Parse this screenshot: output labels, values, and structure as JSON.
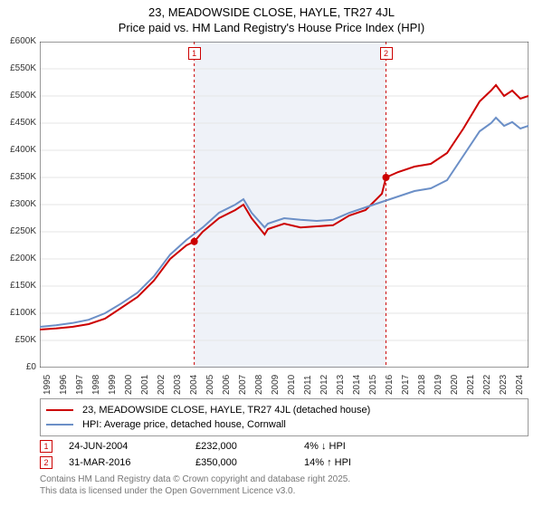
{
  "title": {
    "line1": "23, MEADOWSIDE CLOSE, HAYLE, TR27 4JL",
    "line2": "Price paid vs. HM Land Registry's House Price Index (HPI)"
  },
  "chart": {
    "type": "line",
    "background_color": "#ffffff",
    "grid_color": "#e6e6e6",
    "axis_color": "#333333",
    "shade_color": "#e8edf5",
    "shade_opacity": 0.7,
    "x": {
      "min": 1995,
      "max": 2025,
      "ticks": [
        1995,
        1996,
        1997,
        1998,
        1999,
        2000,
        2001,
        2002,
        2003,
        2004,
        2005,
        2006,
        2007,
        2008,
        2009,
        2010,
        2011,
        2012,
        2013,
        2014,
        2015,
        2016,
        2017,
        2018,
        2019,
        2020,
        2021,
        2022,
        2023,
        2024
      ],
      "label_fontsize": 10
    },
    "y": {
      "min": 0,
      "max": 600000,
      "ticks": [
        0,
        50000,
        100000,
        150000,
        200000,
        250000,
        300000,
        350000,
        400000,
        450000,
        500000,
        550000,
        600000
      ],
      "tick_labels": [
        "£0",
        "£50K",
        "£100K",
        "£150K",
        "£200K",
        "£250K",
        "£300K",
        "£350K",
        "£400K",
        "£450K",
        "£500K",
        "£550K",
        "£600K"
      ],
      "label_fontsize": 10
    },
    "shade_range": {
      "x0": 2004.48,
      "x1": 2016.25
    },
    "series": [
      {
        "id": "property",
        "label": "23, MEADOWSIDE CLOSE, HAYLE, TR27 4JL (detached house)",
        "color": "#cc0000",
        "width": 2,
        "points": [
          [
            1995,
            70000
          ],
          [
            1996,
            72000
          ],
          [
            1997,
            75000
          ],
          [
            1998,
            80000
          ],
          [
            1999,
            90000
          ],
          [
            2000,
            110000
          ],
          [
            2001,
            130000
          ],
          [
            2002,
            160000
          ],
          [
            2003,
            200000
          ],
          [
            2004,
            225000
          ],
          [
            2004.48,
            232000
          ],
          [
            2005,
            250000
          ],
          [
            2006,
            275000
          ],
          [
            2007,
            290000
          ],
          [
            2007.5,
            300000
          ],
          [
            2008,
            275000
          ],
          [
            2008.8,
            245000
          ],
          [
            2009,
            255000
          ],
          [
            2010,
            265000
          ],
          [
            2011,
            258000
          ],
          [
            2012,
            260000
          ],
          [
            2013,
            262000
          ],
          [
            2014,
            280000
          ],
          [
            2015,
            290000
          ],
          [
            2016,
            320000
          ],
          [
            2016.25,
            350000
          ],
          [
            2017,
            360000
          ],
          [
            2018,
            370000
          ],
          [
            2019,
            375000
          ],
          [
            2020,
            395000
          ],
          [
            2021,
            440000
          ],
          [
            2022,
            490000
          ],
          [
            2022.7,
            510000
          ],
          [
            2023,
            520000
          ],
          [
            2023.5,
            500000
          ],
          [
            2024,
            510000
          ],
          [
            2024.5,
            495000
          ],
          [
            2025,
            500000
          ]
        ]
      },
      {
        "id": "hpi",
        "label": "HPI: Average price, detached house, Cornwall",
        "color": "#6b8fc7",
        "width": 2,
        "points": [
          [
            1995,
            75000
          ],
          [
            1996,
            78000
          ],
          [
            1997,
            82000
          ],
          [
            1998,
            88000
          ],
          [
            1999,
            100000
          ],
          [
            2000,
            118000
          ],
          [
            2001,
            138000
          ],
          [
            2002,
            168000
          ],
          [
            2003,
            208000
          ],
          [
            2004,
            235000
          ],
          [
            2005,
            258000
          ],
          [
            2006,
            285000
          ],
          [
            2007,
            300000
          ],
          [
            2007.5,
            310000
          ],
          [
            2008,
            285000
          ],
          [
            2008.8,
            258000
          ],
          [
            2009,
            265000
          ],
          [
            2010,
            275000
          ],
          [
            2011,
            272000
          ],
          [
            2012,
            270000
          ],
          [
            2013,
            272000
          ],
          [
            2014,
            285000
          ],
          [
            2015,
            295000
          ],
          [
            2016,
            305000
          ],
          [
            2017,
            315000
          ],
          [
            2018,
            325000
          ],
          [
            2019,
            330000
          ],
          [
            2020,
            345000
          ],
          [
            2021,
            390000
          ],
          [
            2022,
            435000
          ],
          [
            2022.7,
            450000
          ],
          [
            2023,
            460000
          ],
          [
            2023.5,
            445000
          ],
          [
            2024,
            452000
          ],
          [
            2024.5,
            440000
          ],
          [
            2025,
            445000
          ]
        ]
      }
    ],
    "markers": [
      {
        "num": "1",
        "x": 2004.48,
        "y": 232000,
        "color": "#cc0000"
      },
      {
        "num": "2",
        "x": 2016.25,
        "y": 350000,
        "color": "#cc0000"
      }
    ],
    "vlines": [
      {
        "x": 2004.48,
        "color": "#cc0000",
        "dash": "3,3"
      },
      {
        "x": 2016.25,
        "color": "#cc0000",
        "dash": "3,3"
      }
    ]
  },
  "legend": {
    "border_color": "#999999",
    "items": [
      {
        "color": "#cc0000",
        "label": "23, MEADOWSIDE CLOSE, HAYLE, TR27 4JL (detached house)"
      },
      {
        "color": "#6b8fc7",
        "label": "HPI: Average price, detached house, Cornwall"
      }
    ]
  },
  "events": [
    {
      "num": "1",
      "date": "24-JUN-2004",
      "price": "£232,000",
      "delta": "4% ↓ HPI"
    },
    {
      "num": "2",
      "date": "31-MAR-2016",
      "price": "£350,000",
      "delta": "14% ↑ HPI"
    }
  ],
  "footer": {
    "line1": "Contains HM Land Registry data © Crown copyright and database right 2025.",
    "line2": "This data is licensed under the Open Government Licence v3.0."
  }
}
